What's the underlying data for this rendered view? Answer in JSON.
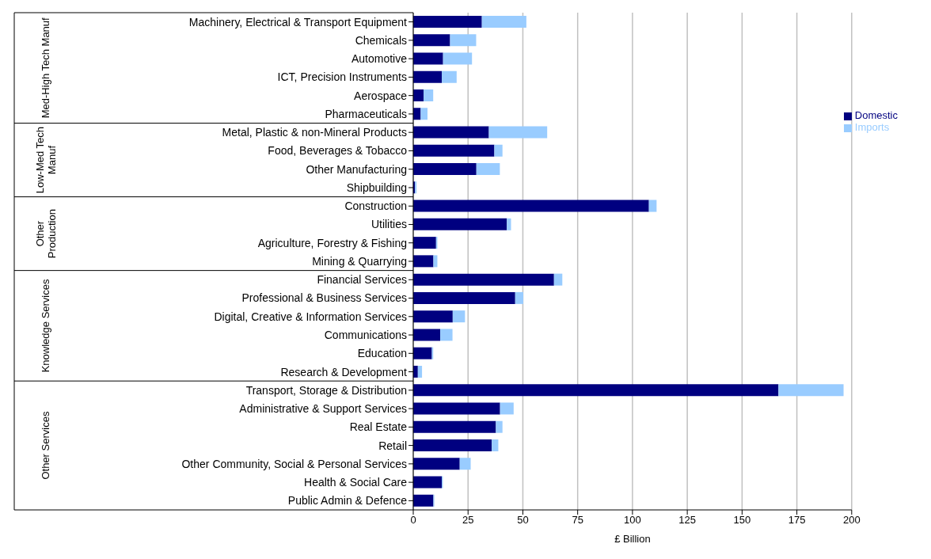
{
  "chart_data": {
    "type": "bar",
    "orientation": "horizontal",
    "stacked": true,
    "xlabel": "£ Billion",
    "categories": [
      "Machinery, Electrical & Transport Equipment",
      "Chemicals",
      "Automotive",
      "ICT, Precision Instruments",
      "Aerospace",
      "Pharmaceuticals",
      "Metal, Plastic & non-Mineral Products",
      "Food, Beverages & Tobacco",
      "Other Manufacturing",
      "Shipbuilding",
      "Construction",
      "Utilities",
      "Agriculture, Forestry & Fishing",
      "Mining & Quarrying",
      "Financial Services",
      "Professional & Business Services",
      "Digital, Creative & Information Services",
      "Communications",
      "Education",
      "Research & Development",
      "Transport, Storage & Distribution",
      "Administrative & Support Services",
      "Real Estate",
      "Retail",
      "Other Community, Social & Personal Services",
      "Health & Social Care",
      "Public Admin & Defence"
    ],
    "series": [
      {
        "name": "Domestic",
        "color": "#000080",
        "values": [
          31.3,
          16.8,
          13.6,
          13.0,
          4.7,
          3.4,
          34.5,
          37.0,
          28.8,
          0.8,
          107.5,
          42.7,
          10.4,
          9.2,
          64.2,
          46.5,
          18.0,
          12.3,
          8.5,
          2.1,
          166.6,
          39.6,
          37.7,
          35.8,
          21.2,
          13.0,
          9.2
        ]
      },
      {
        "name": "Imports",
        "color": "#99ccff",
        "values": [
          20.3,
          11.9,
          13.2,
          6.8,
          4.4,
          3.1,
          26.6,
          3.7,
          10.7,
          0.7,
          3.5,
          1.9,
          0.6,
          1.8,
          3.8,
          3.7,
          5.6,
          5.6,
          0.6,
          1.9,
          29.7,
          6.2,
          3.0,
          3.0,
          5.0,
          0.5,
          0.4
        ]
      }
    ],
    "xlim": [
      0,
      200
    ],
    "xticks": [
      0,
      25,
      50,
      75,
      100,
      125,
      150,
      175,
      200
    ],
    "grid": "x",
    "legend": "right",
    "annotations": [
      "Med-High Tech Manuf",
      "Low-Med Tech Manuf",
      "Other Production",
      "Knowledge Services",
      "Other Services"
    ]
  }
}
